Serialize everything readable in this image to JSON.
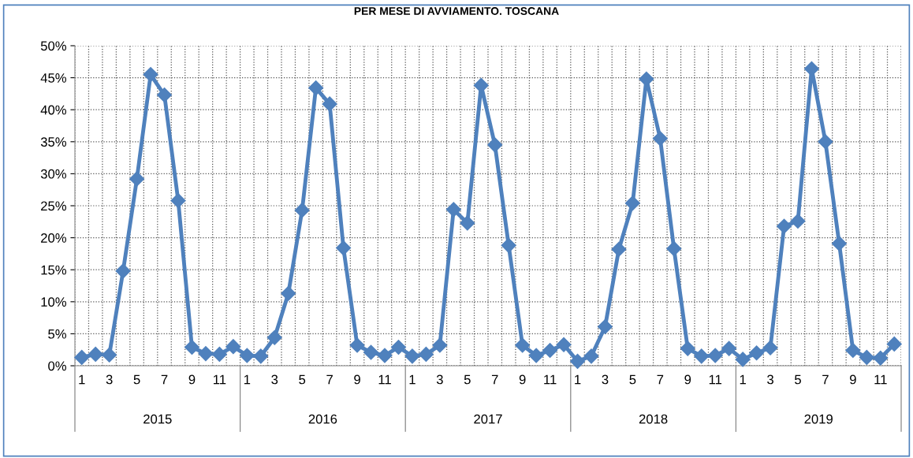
{
  "chart_data": {
    "type": "line",
    "title": "PER MESE DI AVVIAMENTO. TOSCANA",
    "categories": [
      "1",
      null,
      "3",
      null,
      "5",
      null,
      "7",
      null,
      "9",
      null,
      "11",
      null,
      "1",
      null,
      "3",
      null,
      "5",
      null,
      "7",
      null,
      "9",
      null,
      "11",
      null,
      "1",
      null,
      "3",
      null,
      "5",
      null,
      "7",
      null,
      "9",
      null,
      "11",
      null,
      "1",
      null,
      "3",
      null,
      "5",
      null,
      "7",
      null,
      "9",
      null,
      "11",
      null,
      "1",
      null,
      "3",
      null,
      "5",
      null,
      "7",
      null,
      "9",
      null,
      "11",
      null
    ],
    "series": [
      {
        "color": "#4f81bd",
        "values": [
          1.3,
          1.8,
          1.7,
          14.8,
          29.2,
          45.5,
          42.3,
          25.8,
          2.9,
          1.9,
          1.8,
          3.0,
          1.6,
          1.5,
          4.4,
          11.3,
          24.3,
          43.4,
          40.9,
          18.4,
          3.2,
          2.1,
          1.6,
          2.9,
          1.5,
          1.8,
          3.2,
          24.4,
          22.3,
          43.8,
          34.5,
          18.8,
          3.2,
          1.6,
          2.4,
          3.3,
          0.7,
          1.5,
          6.1,
          18.2,
          25.4,
          44.8,
          35.5,
          18.3,
          2.7,
          1.5,
          1.6,
          2.7,
          1.0,
          2.0,
          2.8,
          21.8,
          22.6,
          46.4,
          35.0,
          19.1,
          2.4,
          1.3,
          1.2,
          3.4
        ]
      }
    ],
    "annotations": [
      "2015",
      "2016",
      "2017",
      "2018",
      "2019"
    ],
    "ylim": [
      0,
      50
    ],
    "yticks": [
      {
        "value": 0,
        "label": "0%"
      },
      {
        "value": 5,
        "label": "5%"
      },
      {
        "value": 10,
        "label": "10%"
      },
      {
        "value": 15,
        "label": "15%"
      },
      {
        "value": 20,
        "label": "20%"
      },
      {
        "value": 25,
        "label": "25%"
      },
      {
        "value": 30,
        "label": "30%"
      },
      {
        "value": 35,
        "label": "35%"
      },
      {
        "value": 40,
        "label": "40%"
      },
      {
        "value": 45,
        "label": "45%"
      },
      {
        "value": 50,
        "label": "50%"
      }
    ],
    "grid": true,
    "marker": "diamond",
    "line_style": "solid",
    "legend": false
  }
}
